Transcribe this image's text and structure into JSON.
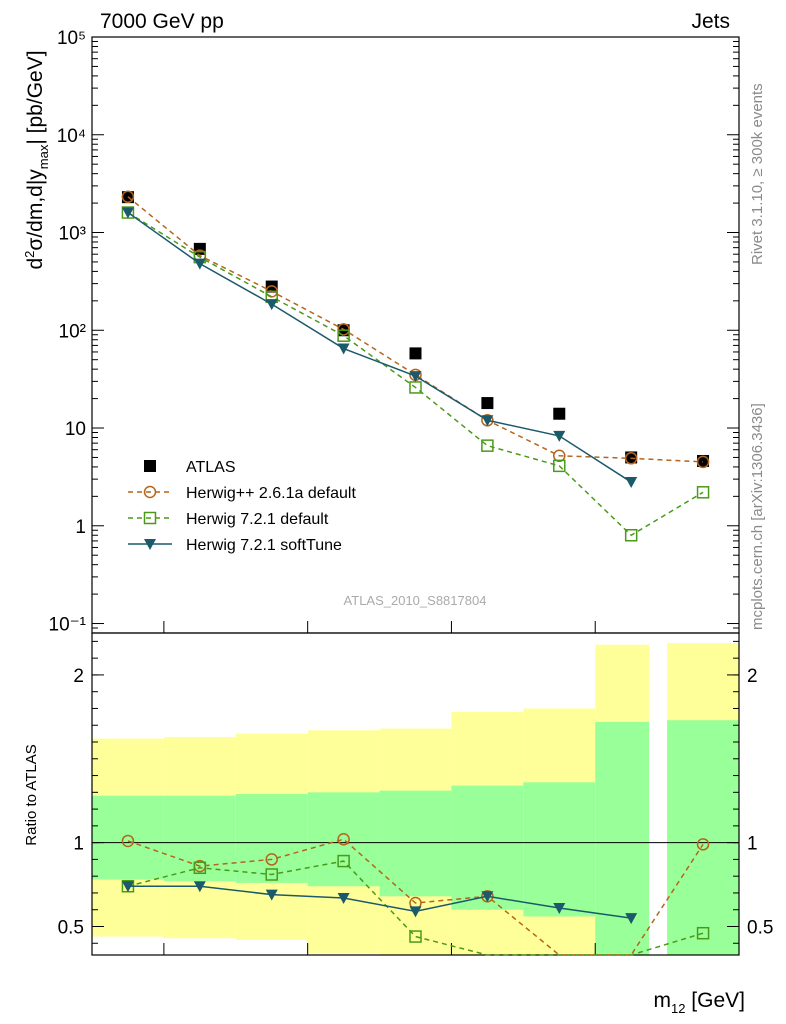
{
  "header": {
    "left": "7000 GeV pp",
    "right": "Jets"
  },
  "side_labels": {
    "rivet": "Rivet 3.1.10, ≥ 300k events",
    "mcplots": "mcplots.cern.ch [arXiv:1306.3436]"
  },
  "watermark": "ATLAS_2010_S8817804",
  "axes": {
    "y_main": {
      "label": "d²σ/dm,d|y_max| [pb/GeV]",
      "scale": "log",
      "range": [
        0.08,
        100000
      ],
      "ticks": [
        {
          "v": 0.1,
          "label": "10⁻¹"
        },
        {
          "v": 1,
          "label": "1"
        },
        {
          "v": 10,
          "label": "10"
        },
        {
          "v": 100,
          "label": "10²"
        },
        {
          "v": 1000,
          "label": "10³"
        },
        {
          "v": 10000,
          "label": "10⁴"
        },
        {
          "v": 100000,
          "label": "10⁵"
        }
      ]
    },
    "y_ratio": {
      "label": "Ratio to ATLAS",
      "range": [
        0.33,
        2.25
      ],
      "ticks": [
        {
          "v": 0.5,
          "label": "0.5"
        },
        {
          "v": 1,
          "label": "1"
        },
        {
          "v": 2,
          "label": "2"
        }
      ]
    },
    "x": {
      "label": "m₁₂ [GeV]"
    }
  },
  "chart_data": {
    "type": "scatter",
    "x": [
      1,
      2,
      3,
      4,
      5,
      6,
      7,
      8,
      9
    ],
    "bin_edges": [
      0.5,
      1.5,
      2.5,
      3.5,
      4.5,
      5.5,
      6.5,
      7.5,
      8.5,
      9.5
    ],
    "series": [
      {
        "name": "ATLAS",
        "color": "#000000",
        "marker": "square-filled",
        "values": [
          2300,
          680,
          280,
          100,
          58,
          18,
          14,
          5,
          4.6
        ]
      },
      {
        "name": "Herwig++ 2.6.1a default",
        "color": "#b5651d",
        "marker": "circle-open",
        "dash": true,
        "values": [
          2320,
          580,
          250,
          102,
          35,
          12,
          5.2,
          4.9,
          4.5
        ]
      },
      {
        "name": "Herwig 7.2.1 default",
        "color": "#4a9a1a",
        "marker": "square-open",
        "dash": true,
        "values": [
          1600,
          560,
          220,
          88,
          26,
          6.6,
          4.1,
          0.8,
          2.2
        ]
      },
      {
        "name": "Herwig 7.2.1 softTune",
        "color": "#1b5a6b",
        "marker": "triangle-down-filled",
        "dash": false,
        "values": [
          1600,
          480,
          185,
          65,
          34,
          12,
          8.3,
          2.8,
          null
        ]
      }
    ],
    "ratio": {
      "ref": 1,
      "green_band": [
        [
          0.78,
          1.28
        ],
        [
          0.77,
          1.28
        ],
        [
          0.76,
          1.29
        ],
        [
          0.74,
          1.3
        ],
        [
          0.68,
          1.31
        ],
        [
          0.6,
          1.34
        ],
        [
          0.56,
          1.36
        ],
        [
          0.33,
          1.72
        ],
        [
          0.33,
          1.73
        ]
      ],
      "yellow_band": [
        [
          0.44,
          1.62
        ],
        [
          0.43,
          1.63
        ],
        [
          0.42,
          1.65
        ],
        [
          0.34,
          1.67
        ],
        [
          0.33,
          1.68
        ],
        [
          0.33,
          1.78
        ],
        [
          0.33,
          1.8
        ],
        [
          0.33,
          2.18
        ],
        [
          0.33,
          2.19
        ]
      ],
      "series": [
        {
          "name": "Herwig++ 2.6.1a default",
          "values": [
            1.01,
            0.86,
            0.9,
            1.02,
            0.64,
            0.68,
            0.3,
            0.3,
            0.99
          ]
        },
        {
          "name": "Herwig 7.2.1 default",
          "values": [
            0.74,
            0.85,
            0.81,
            0.89,
            0.44,
            0.3,
            0.3,
            0.3,
            0.46
          ]
        },
        {
          "name": "Herwig 7.2.1 softTune",
          "values": [
            0.74,
            0.74,
            0.69,
            0.67,
            0.59,
            0.68,
            0.61,
            0.55,
            null
          ]
        }
      ]
    }
  }
}
